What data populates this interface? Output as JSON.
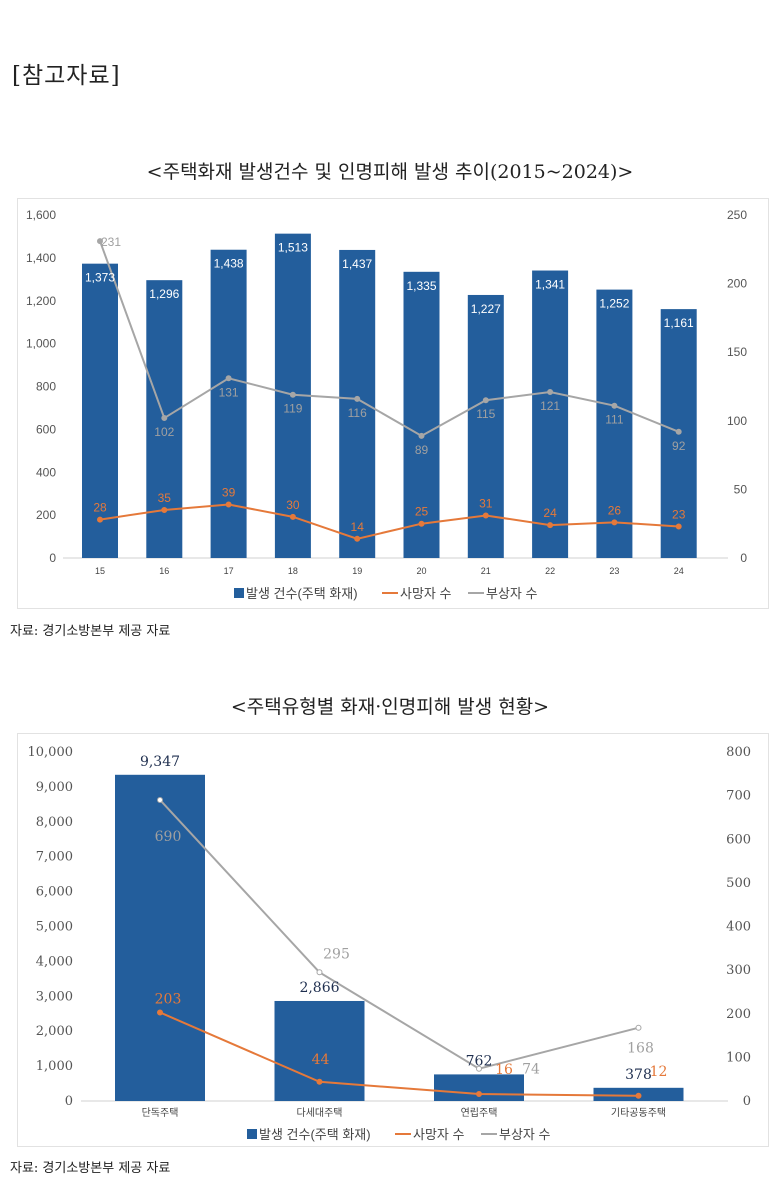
{
  "header": "[참고자료]",
  "chart_data": [
    {
      "type": "bar+line",
      "title": "<주택화재 발생건수 및 인명피해 발생 추이(2015~2024)>",
      "source": "자료: 경기소방본부 제공 자료",
      "categories": [
        "15",
        "16",
        "17",
        "18",
        "19",
        "20",
        "21",
        "22",
        "23",
        "24"
      ],
      "y_left": {
        "range": [
          0,
          1600
        ],
        "ticks": [
          "0",
          "200",
          "400",
          "600",
          "800",
          "1,000",
          "1,200",
          "1,400",
          "1,600"
        ]
      },
      "y_right": {
        "range": [
          0,
          250
        ],
        "ticks": [
          "0",
          "50",
          "100",
          "150",
          "200",
          "250"
        ]
      },
      "series": [
        {
          "name": "발생 건수(주택 화재)",
          "type": "bar",
          "axis": "left",
          "color": "#235E9C",
          "values": [
            1373,
            1296,
            1438,
            1513,
            1437,
            1335,
            1227,
            1341,
            1252,
            1161
          ],
          "labels": [
            "1,373",
            "1,296",
            "1,438",
            "1,513",
            "1,437",
            "1,335",
            "1,227",
            "1,341",
            "1,252",
            "1,161"
          ]
        },
        {
          "name": "사망자 수",
          "type": "line",
          "axis": "right",
          "color": "#E5793A",
          "values": [
            28,
            35,
            39,
            30,
            14,
            25,
            31,
            24,
            26,
            23
          ],
          "labels": [
            "28",
            "35",
            "39",
            "30",
            "14",
            "25",
            "31",
            "24",
            "26",
            "23"
          ]
        },
        {
          "name": "부상자 수",
          "type": "line",
          "axis": "right",
          "color": "#A6A6A6",
          "values": [
            231,
            102,
            131,
            119,
            116,
            89,
            115,
            121,
            111,
            92
          ],
          "labels": [
            "231",
            "102",
            "131",
            "119",
            "116",
            "89",
            "115",
            "121",
            "111",
            "92"
          ]
        }
      ],
      "legend": "bottom",
      "grid": false
    },
    {
      "type": "bar+line",
      "title": "<주택유형별 화재·인명피해 발생 현황>",
      "source": "자료: 경기소방본부 제공 자료",
      "categories": [
        "단독주택",
        "다세대주택",
        "연립주택",
        "기타공동주택"
      ],
      "y_left": {
        "range": [
          0,
          10000
        ],
        "ticks": [
          "0",
          "1,000",
          "2,000",
          "3,000",
          "4,000",
          "5,000",
          "6,000",
          "7,000",
          "8,000",
          "9,000",
          "10,000"
        ]
      },
      "y_right": {
        "range": [
          0,
          800
        ],
        "ticks": [
          "0",
          "100",
          "200",
          "300",
          "400",
          "500",
          "600",
          "700",
          "800"
        ]
      },
      "series": [
        {
          "name": "발생 건수(주택 화재)",
          "type": "bar",
          "axis": "left",
          "color": "#235E9C",
          "values": [
            9347,
            2866,
            762,
            378
          ],
          "labels": [
            "9,347",
            "2,866",
            "762",
            "378"
          ]
        },
        {
          "name": "사망자 수",
          "type": "line",
          "axis": "right",
          "color": "#E5793A",
          "values": [
            203,
            44,
            16,
            12
          ],
          "labels": [
            "203",
            "44",
            "16",
            "12"
          ]
        },
        {
          "name": "부상자 수",
          "type": "line",
          "axis": "right",
          "color": "#A6A6A6",
          "values": [
            690,
            295,
            74,
            168
          ],
          "labels": [
            "690",
            "295",
            "74",
            "168"
          ]
        }
      ],
      "legend": "bottom",
      "grid": false
    }
  ]
}
